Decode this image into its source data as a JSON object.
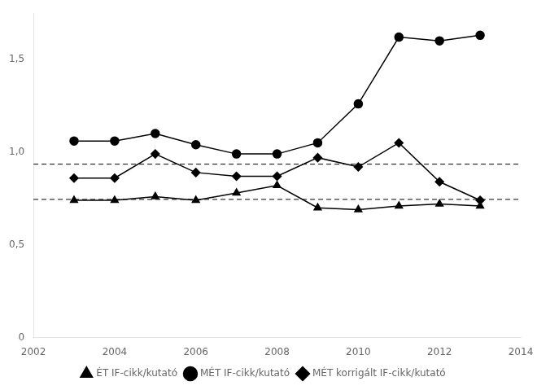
{
  "chart_data": {
    "type": "line",
    "x": [
      2003,
      2004,
      2005,
      2006,
      2007,
      2008,
      2009,
      2010,
      2011,
      2012,
      2013
    ],
    "series": [
      {
        "name": "ÉT IF-cikk/kutató",
        "color": "#000000",
        "marker": "triangle",
        "line_style": "solid",
        "values": [
          0.74,
          0.74,
          0.76,
          0.74,
          0.78,
          0.82,
          0.7,
          0.69,
          0.71,
          0.72,
          0.71
        ]
      },
      {
        "name": "MÉT IF-cikk/kutató",
        "color": "#000000",
        "marker": "circle",
        "line_style": "solid",
        "values": [
          1.06,
          1.06,
          1.1,
          1.04,
          0.99,
          0.99,
          1.05,
          1.26,
          1.62,
          1.6,
          1.63
        ]
      },
      {
        "name": "MÉT korrigált IF-cikk/kutató",
        "color": "#000000",
        "marker": "diamond",
        "line_style": "solid",
        "values": [
          0.86,
          0.86,
          0.99,
          0.89,
          0.87,
          0.87,
          0.97,
          0.92,
          1.05,
          0.84,
          0.74
        ]
      }
    ],
    "hlines": [
      {
        "y": 0.935,
        "color": "#000000",
        "line_style": "dashed"
      },
      {
        "y": 0.745,
        "color": "#000000",
        "line_style": "dashed"
      }
    ],
    "xlim": [
      2002,
      2014
    ],
    "xticks": [
      2002,
      2004,
      2006,
      2008,
      2010,
      2012,
      2014
    ],
    "ylim": [
      0,
      1.75
    ],
    "yticks": [
      0,
      {
        "value": 0.5,
        "label": "0,5"
      },
      {
        "value": 1.0,
        "label": "1,0"
      },
      {
        "value": 1.5,
        "label": "1,5"
      }
    ],
    "grid": false,
    "legend": "bottom"
  }
}
